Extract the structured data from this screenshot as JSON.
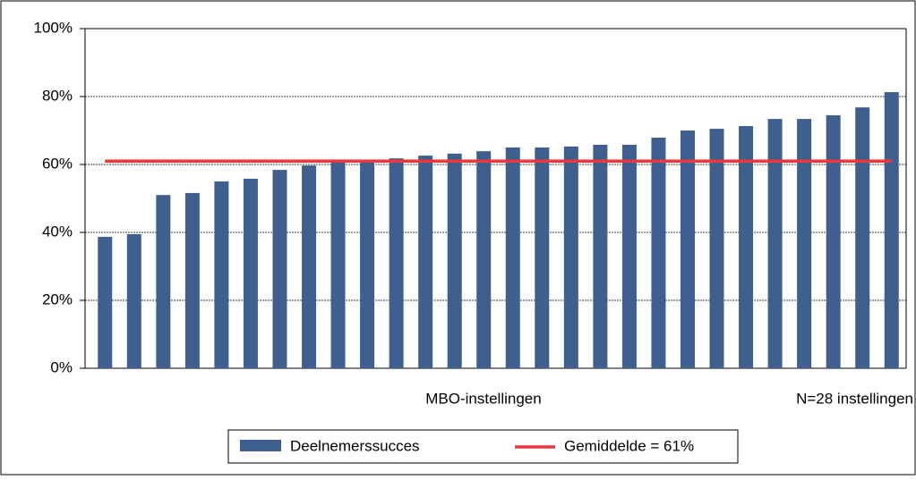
{
  "chart_data": {
    "type": "bar",
    "categories": [
      null,
      null,
      null,
      null,
      null,
      null,
      null,
      null,
      null,
      null,
      null,
      null,
      null,
      null,
      null,
      null,
      null,
      null,
      null,
      null,
      null,
      null,
      null,
      null,
      null,
      null,
      null,
      null
    ],
    "series": [
      {
        "name": "Deelnemerssucces",
        "color": "#3f5f8f",
        "values": [
          38.7,
          39.5,
          51,
          51.6,
          55,
          55.8,
          58.4,
          59.7,
          61.3,
          61.3,
          61.8,
          62.6,
          63.2,
          63.9,
          65,
          65,
          65.3,
          65.8,
          65.8,
          67.9,
          70,
          70.5,
          71.3,
          73.4,
          73.4,
          74.5,
          76.8,
          81.3
        ]
      }
    ],
    "average": {
      "name": "Gemiddelde = 61%",
      "value": 61,
      "color": "#e8393e"
    },
    "x_label": "MBO-instellingen",
    "annotation": "N=28 instellingen",
    "ylim": [
      0,
      100
    ],
    "yticks": [
      {
        "value": 0,
        "label": "0%"
      },
      {
        "value": 20,
        "label": "20%"
      },
      {
        "value": 40,
        "label": "40%"
      },
      {
        "value": 60,
        "label": "60%"
      },
      {
        "value": 80,
        "label": "80%"
      },
      {
        "value": 100,
        "label": "100%"
      }
    ],
    "grid": true,
    "legend": "bottom"
  }
}
